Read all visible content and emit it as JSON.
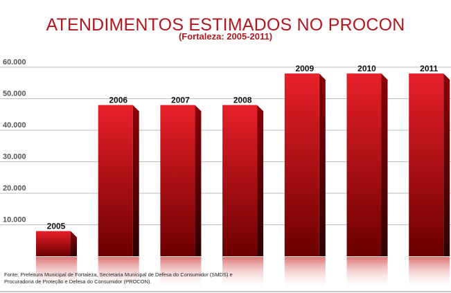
{
  "chart_data": {
    "type": "bar",
    "title": "ATENDIMENTOS ESTIMADOS NO PROCON",
    "subtitle": "(Fortaleza: 2005-2011)",
    "categories": [
      "2005",
      "2006",
      "2007",
      "2008",
      "2009",
      "2010",
      "2011"
    ],
    "values": [
      8000,
      48000,
      48000,
      48000,
      58000,
      58000,
      58000
    ],
    "ylim": [
      0,
      60000
    ],
    "yticks": [
      10000,
      20000,
      30000,
      40000,
      50000,
      60000
    ],
    "ytick_labels": [
      "10.000",
      "20.000",
      "30.000",
      "40.000",
      "50.000",
      "60.000"
    ],
    "xlabel": "",
    "ylabel": "",
    "grid": true,
    "legend": "none",
    "source": "Fonte: Prefeitura Municipal de Fortaleza, Secretaria Municipal de Defesa do Consumidor (SMDS) e Procuradoria de Proteção e Defesa do Consumidor (PROCON).",
    "colors": {
      "bar_top": "#e8202a",
      "bar_bottom": "#6b0000",
      "bar_side": "#5a0000",
      "title": "#b0171f",
      "grid": "#bdbdbd"
    }
  }
}
